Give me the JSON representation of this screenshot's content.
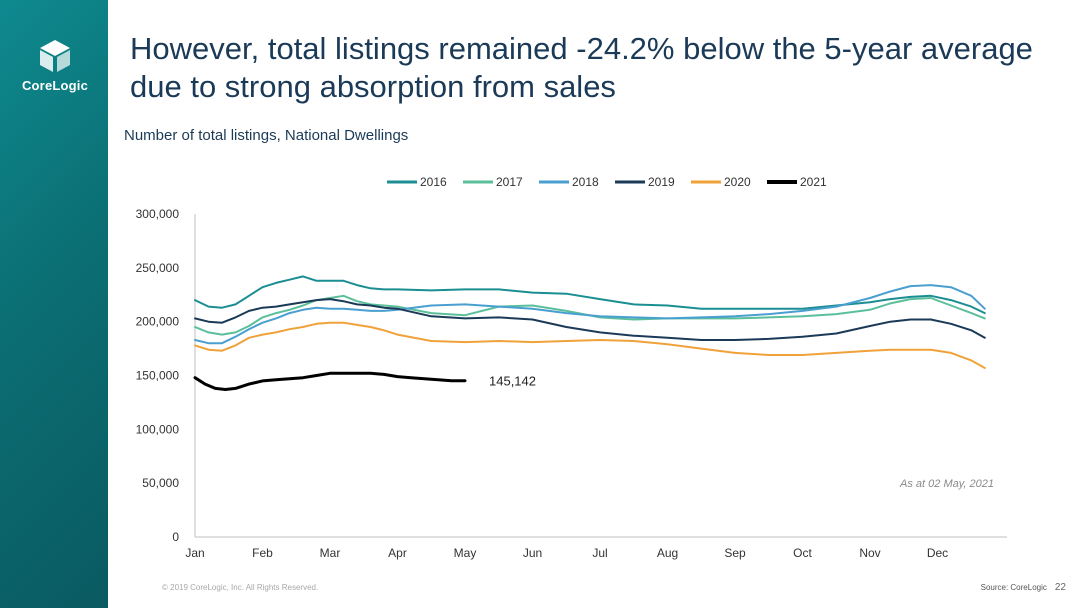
{
  "slide": {
    "title": "However, total listings remained -24.2% below the 5-year average due to strong absorption from sales",
    "subtitle": "Number of total listings,  National Dwellings",
    "brand": "CoreLogic",
    "copyright": "© 2019 CoreLogic, Inc. All Rights Reserved.",
    "source": "Source: CoreLogic",
    "page_number": "22"
  },
  "colors": {
    "sidebar": "#0b6f74",
    "title": "#1b3a57"
  },
  "chart_data": {
    "type": "line",
    "categories": [
      "Jan",
      "Feb",
      "Mar",
      "Apr",
      "May",
      "Jun",
      "Jul",
      "Aug",
      "Sep",
      "Oct",
      "Nov",
      "Dec"
    ],
    "ylim": [
      0,
      300000
    ],
    "yticks": [
      "0",
      "50,000",
      "100,000",
      "150,000",
      "200,000",
      "250,000",
      "300,000"
    ],
    "legend_position": "top",
    "grid": false,
    "annotation": "As at 02 May, 2021",
    "end_label": "145,142",
    "series": [
      {
        "name": "2016",
        "color": "#1a8e93",
        "width": 2,
        "x": [
          0,
          0.2,
          0.4,
          0.6,
          0.8,
          1,
          1.2,
          1.4,
          1.6,
          1.8,
          2,
          2.2,
          2.4,
          2.6,
          2.8,
          3,
          3.5,
          4,
          4.5,
          5,
          5.5,
          6,
          6.5,
          7,
          7.5,
          8,
          8.5,
          9,
          9.5,
          10,
          10.3,
          10.6,
          10.9,
          11.2,
          11.5,
          11.7
        ],
        "y": [
          220000,
          214000,
          213000,
          216000,
          224000,
          232000,
          236000,
          239000,
          242000,
          238000,
          238000,
          238000,
          234000,
          231000,
          230000,
          230000,
          229000,
          230000,
          230000,
          227000,
          226000,
          221000,
          216000,
          215000,
          212000,
          212000,
          212000,
          212000,
          215000,
          218000,
          221000,
          223000,
          224000,
          220000,
          214000,
          208000
        ]
      },
      {
        "name": "2017",
        "color": "#5bbf9b",
        "width": 2,
        "x": [
          0,
          0.2,
          0.4,
          0.6,
          0.8,
          1,
          1.2,
          1.4,
          1.6,
          1.8,
          2,
          2.2,
          2.4,
          2.6,
          2.8,
          3,
          3.5,
          4,
          4.5,
          5,
          5.5,
          6,
          6.5,
          7,
          7.5,
          8,
          8.5,
          9,
          9.5,
          10,
          10.3,
          10.6,
          10.9,
          11.2,
          11.5,
          11.7
        ],
        "y": [
          195000,
          190000,
          188000,
          190000,
          196000,
          204000,
          208000,
          211000,
          215000,
          220000,
          222000,
          224000,
          219000,
          216000,
          215000,
          214000,
          208000,
          206000,
          214000,
          215000,
          210000,
          204000,
          202000,
          203000,
          203000,
          203000,
          204000,
          205000,
          207000,
          211000,
          217000,
          221000,
          222000,
          215000,
          208000,
          203000
        ]
      },
      {
        "name": "2018",
        "color": "#4a9fd1",
        "width": 2,
        "x": [
          0,
          0.2,
          0.4,
          0.6,
          0.8,
          1,
          1.2,
          1.4,
          1.6,
          1.8,
          2,
          2.2,
          2.4,
          2.6,
          2.8,
          3,
          3.5,
          4,
          4.5,
          5,
          5.5,
          6,
          6.5,
          7,
          7.5,
          8,
          8.5,
          9,
          9.5,
          10,
          10.3,
          10.6,
          10.9,
          11.2,
          11.5,
          11.7
        ],
        "y": [
          183000,
          180000,
          180000,
          186000,
          193000,
          199000,
          203000,
          208000,
          211000,
          213000,
          212000,
          212000,
          211000,
          210000,
          210000,
          211000,
          215000,
          216000,
          214000,
          212000,
          208000,
          205000,
          204000,
          203000,
          204000,
          205000,
          207000,
          210000,
          214000,
          222000,
          228000,
          233000,
          234000,
          232000,
          224000,
          212000
        ]
      },
      {
        "name": "2019",
        "color": "#1b3a57",
        "width": 2,
        "x": [
          0,
          0.2,
          0.4,
          0.6,
          0.8,
          1,
          1.2,
          1.4,
          1.6,
          1.8,
          2,
          2.2,
          2.4,
          2.6,
          2.8,
          3,
          3.5,
          4,
          4.5,
          5,
          5.5,
          6,
          6.5,
          7,
          7.5,
          8,
          8.5,
          9,
          9.5,
          10,
          10.3,
          10.6,
          10.9,
          11.2,
          11.5,
          11.7
        ],
        "y": [
          203000,
          200000,
          199000,
          204000,
          210000,
          213000,
          214000,
          216000,
          218000,
          220000,
          221000,
          219000,
          216000,
          215000,
          213000,
          212000,
          205000,
          203000,
          204000,
          202000,
          195000,
          190000,
          187000,
          185000,
          183000,
          183000,
          184000,
          186000,
          189000,
          196000,
          200000,
          202000,
          202000,
          198000,
          192000,
          185000
        ]
      },
      {
        "name": "2020",
        "color": "#f0a23a",
        "width": 2,
        "x": [
          0,
          0.2,
          0.4,
          0.6,
          0.8,
          1,
          1.2,
          1.4,
          1.6,
          1.8,
          2,
          2.2,
          2.4,
          2.6,
          2.8,
          3,
          3.5,
          4,
          4.5,
          5,
          5.5,
          6,
          6.5,
          7,
          7.5,
          8,
          8.5,
          9,
          9.5,
          10,
          10.3,
          10.6,
          10.9,
          11.2,
          11.5,
          11.7
        ],
        "y": [
          178000,
          174000,
          173000,
          178000,
          185000,
          188000,
          190000,
          193000,
          195000,
          198000,
          199000,
          199000,
          197000,
          195000,
          192000,
          188000,
          182000,
          181000,
          182000,
          181000,
          182000,
          183000,
          182000,
          179000,
          175000,
          171000,
          169000,
          169000,
          171000,
          173000,
          174000,
          174000,
          174000,
          171000,
          164000,
          157000
        ]
      },
      {
        "name": "2021",
        "color": "#000000",
        "width": 3,
        "x": [
          0,
          0.15,
          0.3,
          0.45,
          0.6,
          0.8,
          1,
          1.2,
          1.4,
          1.6,
          1.8,
          2,
          2.2,
          2.4,
          2.6,
          2.8,
          3,
          3.2,
          3.4,
          3.6,
          3.8,
          4
        ],
        "y": [
          148000,
          142000,
          138000,
          137000,
          138000,
          142000,
          145000,
          146000,
          147000,
          148000,
          150000,
          152000,
          152000,
          152000,
          152000,
          151000,
          149000,
          148000,
          147000,
          146000,
          145142,
          145142
        ]
      }
    ]
  }
}
